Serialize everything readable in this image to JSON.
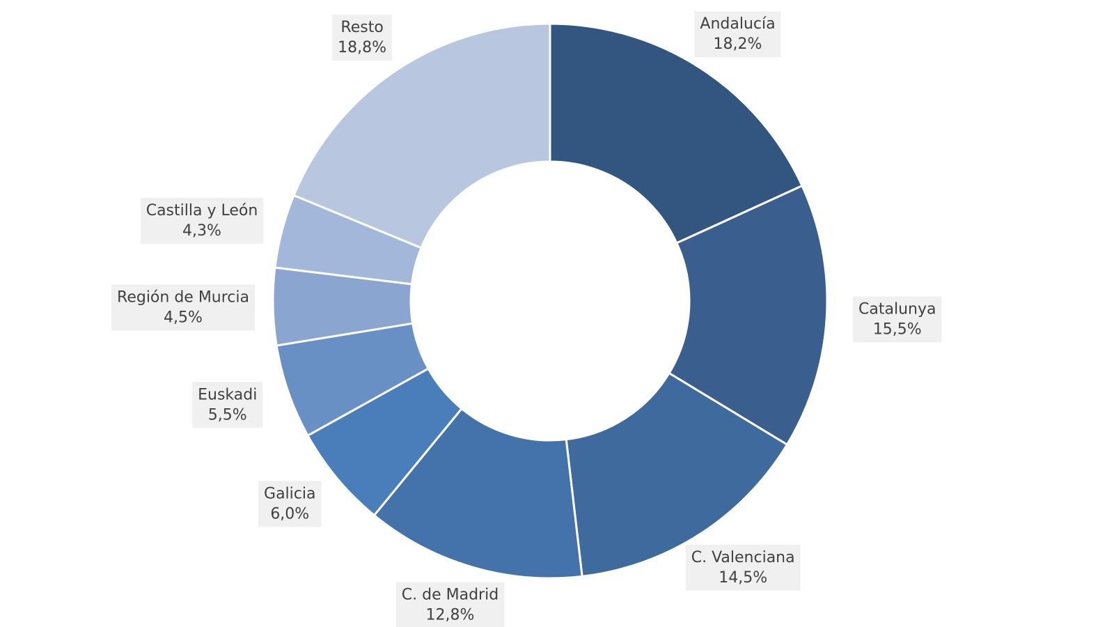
{
  "chart_data": {
    "type": "donut",
    "categories": [
      "Andalucía",
      "Catalunya",
      "C. Valenciana",
      "C. de Madrid",
      "Galicia",
      "Euskadi",
      "Región de Murcia",
      "Castilla y León",
      "Resto"
    ],
    "values": [
      18.2,
      15.5,
      14.5,
      12.8,
      6.0,
      5.5,
      4.5,
      4.3,
      18.8
    ],
    "value_labels": [
      "18,2%",
      "15,5%",
      "14,5%",
      "12,8%",
      "6,0%",
      "5,5%",
      "4,5%",
      "4,3%",
      "18,8%"
    ],
    "colors": [
      "#32567f",
      "#3a5f8f",
      "#3f6a9e",
      "#4472aa",
      "#4a7ebb",
      "#6890c5",
      "#8aa5d0",
      "#a3b7da",
      "#b8c6e0"
    ]
  }
}
